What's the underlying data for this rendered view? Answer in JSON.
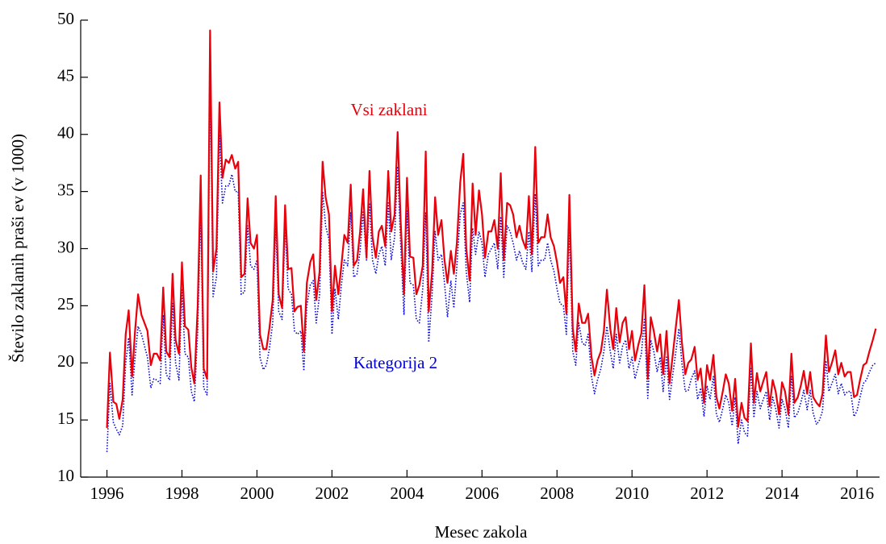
{
  "chart_data": {
    "type": "line",
    "x_label": "Mesec zakola",
    "y_label": "Število zaklanih praši ev (v 1000)",
    "xlim": [
      1995.3,
      2016.6
    ],
    "xticks": [
      1996,
      1998,
      2000,
      2002,
      2004,
      2006,
      2008,
      2010,
      2012,
      2014,
      2016
    ],
    "ylim": [
      10,
      50
    ],
    "yticks": [
      10,
      15,
      20,
      25,
      30,
      35,
      40,
      45,
      50
    ],
    "x": [
      1996,
      1996.08,
      1996.17,
      1996.25,
      1996.33,
      1996.42,
      1996.5,
      1996.58,
      1996.67,
      1996.75,
      1996.83,
      1996.92,
      1997,
      1997.08,
      1997.17,
      1997.25,
      1997.33,
      1997.42,
      1997.5,
      1997.58,
      1997.67,
      1997.75,
      1997.83,
      1997.92,
      1998,
      1998.08,
      1998.17,
      1998.25,
      1998.33,
      1998.42,
      1998.5,
      1998.58,
      1998.67,
      1998.75,
      1998.83,
      1998.92,
      1999,
      1999.08,
      1999.17,
      1999.25,
      1999.33,
      1999.42,
      1999.5,
      1999.58,
      1999.67,
      1999.75,
      1999.83,
      1999.92,
      2000,
      2000.08,
      2000.17,
      2000.25,
      2000.33,
      2000.42,
      2000.5,
      2000.58,
      2000.67,
      2000.75,
      2000.83,
      2000.92,
      2001,
      2001.08,
      2001.17,
      2001.25,
      2001.33,
      2001.42,
      2001.5,
      2001.58,
      2001.67,
      2001.75,
      2001.83,
      2001.92,
      2002,
      2002.08,
      2002.17,
      2002.25,
      2002.33,
      2002.42,
      2002.5,
      2002.58,
      2002.67,
      2002.75,
      2002.83,
      2002.92,
      2003,
      2003.08,
      2003.17,
      2003.25,
      2003.33,
      2003.42,
      2003.5,
      2003.58,
      2003.67,
      2003.75,
      2003.83,
      2003.92,
      2004,
      2004.08,
      2004.17,
      2004.25,
      2004.33,
      2004.42,
      2004.5,
      2004.58,
      2004.67,
      2004.75,
      2004.83,
      2004.92,
      2005,
      2005.08,
      2005.17,
      2005.25,
      2005.33,
      2005.42,
      2005.5,
      2005.58,
      2005.67,
      2005.75,
      2005.83,
      2005.92,
      2006,
      2006.08,
      2006.17,
      2006.25,
      2006.33,
      2006.42,
      2006.5,
      2006.58,
      2006.67,
      2006.75,
      2006.83,
      2006.92,
      2007,
      2007.08,
      2007.17,
      2007.25,
      2007.33,
      2007.42,
      2007.5,
      2007.58,
      2007.67,
      2007.75,
      2007.83,
      2007.92,
      2008,
      2008.08,
      2008.17,
      2008.25,
      2008.33,
      2008.42,
      2008.5,
      2008.58,
      2008.67,
      2008.75,
      2008.83,
      2008.92,
      2009,
      2009.08,
      2009.17,
      2009.25,
      2009.33,
      2009.42,
      2009.5,
      2009.58,
      2009.67,
      2009.75,
      2009.83,
      2009.92,
      2010,
      2010.08,
      2010.17,
      2010.25,
      2010.33,
      2010.42,
      2010.5,
      2010.58,
      2010.67,
      2010.75,
      2010.83,
      2010.92,
      2011,
      2011.08,
      2011.17,
      2011.25,
      2011.33,
      2011.42,
      2011.5,
      2011.58,
      2011.67,
      2011.75,
      2011.83,
      2011.92,
      2012,
      2012.08,
      2012.17,
      2012.25,
      2012.33,
      2012.42,
      2012.5,
      2012.58,
      2012.67,
      2012.75,
      2012.83,
      2012.92,
      2013,
      2013.08,
      2013.17,
      2013.25,
      2013.33,
      2013.42,
      2013.5,
      2013.58,
      2013.67,
      2013.75,
      2013.83,
      2013.92,
      2014,
      2014.08,
      2014.17,
      2014.25,
      2014.33,
      2014.42,
      2014.5,
      2014.58,
      2014.67,
      2014.75,
      2014.83,
      2014.92,
      2015,
      2015.08,
      2015.17,
      2015.25,
      2015.33,
      2015.42,
      2015.5,
      2015.58,
      2015.67,
      2015.75,
      2015.83,
      2015.92,
      2016,
      2016.08,
      2016.17,
      2016.25,
      2016.33,
      2016.42,
      2016.5
    ],
    "series": [
      {
        "name": "Vsi zaklani",
        "color": "#e8000b",
        "style": "solid",
        "values": [
          14.3,
          20.9,
          16.6,
          16.4,
          15.1,
          16.8,
          22.5,
          24.6,
          18.8,
          22.8,
          26.0,
          24.2,
          23.5,
          22.8,
          19.8,
          20.8,
          20.8,
          20.2,
          26.6,
          21.0,
          20.5,
          27.8,
          22.0,
          20.8,
          28.8,
          23.2,
          22.9,
          19.6,
          18.2,
          25.0,
          36.4,
          19.5,
          18.6,
          49.1,
          28.0,
          30.0,
          42.8,
          36.2,
          37.8,
          37.5,
          38.2,
          37.0,
          37.6,
          27.5,
          27.8,
          34.4,
          30.5,
          30.0,
          31.2,
          22.5,
          21.2,
          21.2,
          23.0,
          25.5,
          34.6,
          26.0,
          24.8,
          33.8,
          28.2,
          28.3,
          24.5,
          24.9,
          25.0,
          21.0,
          27.0,
          28.8,
          29.5,
          25.5,
          28.0,
          37.6,
          34.5,
          33.0,
          24.5,
          28.5,
          26.0,
          28.5,
          31.2,
          30.5,
          35.6,
          28.5,
          29.0,
          31.5,
          35.2,
          29.2,
          36.8,
          31.0,
          29.2,
          31.5,
          32.0,
          30.2,
          36.8,
          31.5,
          33.0,
          40.2,
          32.5,
          26.0,
          36.2,
          29.3,
          29.2,
          26.0,
          26.8,
          28.5,
          38.5,
          24.5,
          28.0,
          34.5,
          31.2,
          32.5,
          29.0,
          27.0,
          29.8,
          27.8,
          30.5,
          35.8,
          38.3,
          30.0,
          27.2,
          35.7,
          31.2,
          35.1,
          33.0,
          29.2,
          31.5,
          31.5,
          32.5,
          30.0,
          36.6,
          29.0,
          34.0,
          33.8,
          33.0,
          31.0,
          32.0,
          30.8,
          30.0,
          34.6,
          29.5,
          38.9,
          30.5,
          31.0,
          31.0,
          33.0,
          31.0,
          30.2,
          28.8,
          27.0,
          27.5,
          24.3,
          34.7,
          23.0,
          21.0,
          25.2,
          23.5,
          23.5,
          24.3,
          20.5,
          18.9,
          20.2,
          21.0,
          22.8,
          26.4,
          23.0,
          21.2,
          24.8,
          21.8,
          23.5,
          24.0,
          21.2,
          22.8,
          20.2,
          21.6,
          22.6,
          26.8,
          18.6,
          24.0,
          22.8,
          21.0,
          22.5,
          19.0,
          22.8,
          18.2,
          20.5,
          23.2,
          25.5,
          21.8,
          19.0,
          20.0,
          20.3,
          21.4,
          18.5,
          19.5,
          16.5,
          19.8,
          18.5,
          20.7,
          17.0,
          16.0,
          17.5,
          19.0,
          18.2,
          15.8,
          18.6,
          14.4,
          16.5,
          15.2,
          14.9,
          21.7,
          16.5,
          19.1,
          17.5,
          18.4,
          19.2,
          16.2,
          18.5,
          17.5,
          15.5,
          18.3,
          17.5,
          15.5,
          20.8,
          16.5,
          17.0,
          18.0,
          19.3,
          17.3,
          19.2,
          17.0,
          16.5,
          16.2,
          17.3,
          22.4,
          19.2,
          20.0,
          21.1,
          19.0,
          20.0,
          18.8,
          19.2,
          19.2,
          17.0,
          17.2,
          18.5,
          19.8,
          20.0,
          21.0,
          22.0,
          23.0
        ]
      },
      {
        "name": "Kategorija 2",
        "color": "#0000dd",
        "style": "dotted",
        "values": [
          12.2,
          18.2,
          14.8,
          14.2,
          13.7,
          14.5,
          20.0,
          22.2,
          17.2,
          20.5,
          23.2,
          22.5,
          21.5,
          20.5,
          17.8,
          18.6,
          18.5,
          18.2,
          24.2,
          19.0,
          18.5,
          25.2,
          20.0,
          18.5,
          26.5,
          20.8,
          20.5,
          17.5,
          16.6,
          22.8,
          33.5,
          17.8,
          17.2,
          45.8,
          25.8,
          27.5,
          40.0,
          34.0,
          35.5,
          35.5,
          36.5,
          35.0,
          35.0,
          26.0,
          26.2,
          32.0,
          28.5,
          28.2,
          29.0,
          20.5,
          19.4,
          19.8,
          21.2,
          23.5,
          32.2,
          24.5,
          23.8,
          32.0,
          26.5,
          26.0,
          22.8,
          22.5,
          22.8,
          19.3,
          25.0,
          26.8,
          27.2,
          23.5,
          26.0,
          35.0,
          32.0,
          30.8,
          22.5,
          26.5,
          23.8,
          26.8,
          29.0,
          28.5,
          33.2,
          27.5,
          27.8,
          29.8,
          33.2,
          29.0,
          34.0,
          29.0,
          27.8,
          29.5,
          30.2,
          28.5,
          34.0,
          29.0,
          31.0,
          37.2,
          30.5,
          24.2,
          33.3,
          27.0,
          26.8,
          23.8,
          23.5,
          26.5,
          33.2,
          21.8,
          26.0,
          31.5,
          29.0,
          29.5,
          27.0,
          24.0,
          27.2,
          24.8,
          28.5,
          33.0,
          34.0,
          28.0,
          25.3,
          31.8,
          29.5,
          31.5,
          30.5,
          27.5,
          29.5,
          30.0,
          30.5,
          28.2,
          32.8,
          27.5,
          32.0,
          31.5,
          30.5,
          29.0,
          29.8,
          28.8,
          28.2,
          31.5,
          28.0,
          34.8,
          28.5,
          29.0,
          29.0,
          30.5,
          29.0,
          28.0,
          26.5,
          25.2,
          25.0,
          22.5,
          32.0,
          21.0,
          19.8,
          23.5,
          21.8,
          21.5,
          22.5,
          18.8,
          17.3,
          18.5,
          19.5,
          21.0,
          23.2,
          21.0,
          19.5,
          22.5,
          20.0,
          21.5,
          22.0,
          19.5,
          20.5,
          18.6,
          19.8,
          20.8,
          23.8,
          16.9,
          22.0,
          21.0,
          19.2,
          20.5,
          17.5,
          20.5,
          16.8,
          18.8,
          21.0,
          23.0,
          20.0,
          17.5,
          17.6,
          18.6,
          19.3,
          16.8,
          17.8,
          15.3,
          18.0,
          16.8,
          18.8,
          15.5,
          14.8,
          16.0,
          17.2,
          16.5,
          14.5,
          17.0,
          12.9,
          15.0,
          13.9,
          13.6,
          19.5,
          15.2,
          17.5,
          16.0,
          16.8,
          17.5,
          15.0,
          17.0,
          16.0,
          14.3,
          16.8,
          16.0,
          14.3,
          18.8,
          15.2,
          15.6,
          16.5,
          17.6,
          15.9,
          17.6,
          15.6,
          14.6,
          15.0,
          15.8,
          20.2,
          17.5,
          18.2,
          19.0,
          17.3,
          18.2,
          17.2,
          17.5,
          17.5,
          15.3,
          15.8,
          17.0,
          18.2,
          18.5,
          19.2,
          19.8,
          20.0
        ]
      }
    ]
  }
}
